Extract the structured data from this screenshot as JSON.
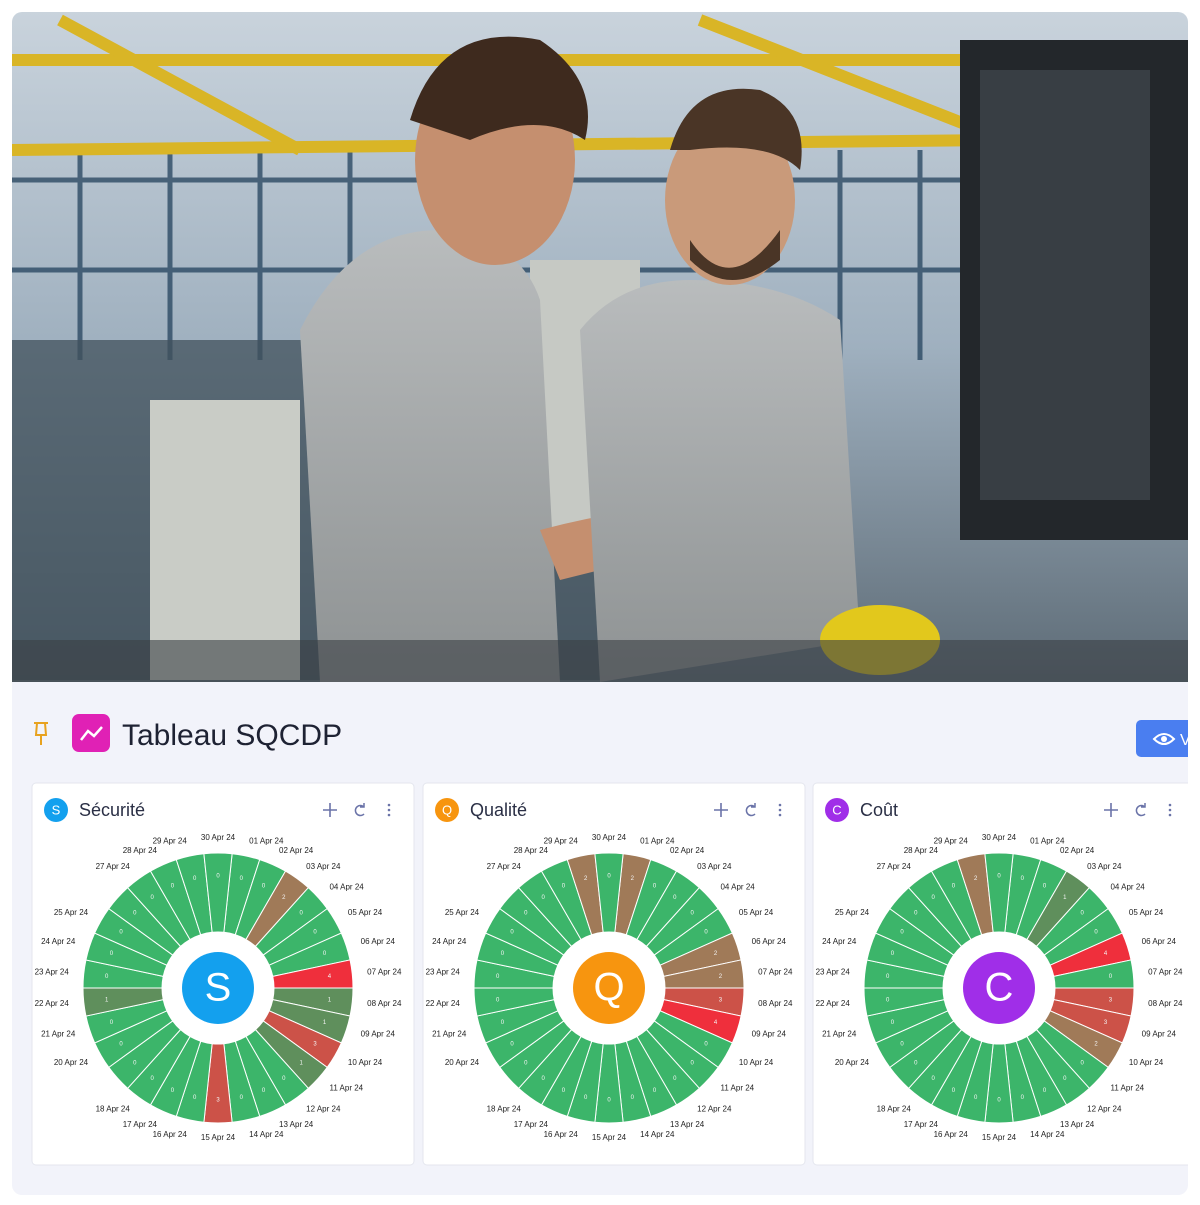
{
  "header": {
    "title": "Tableau SQCDP",
    "button": "V"
  },
  "chart_data": [
    {
      "type": "radial",
      "title": "Sécurité",
      "letter": "S",
      "color": "#13a0ee",
      "categories": [
        "01 Apr 24",
        "02 Apr 24",
        "03 Apr 24",
        "04 Apr 24",
        "05 Apr 24",
        "06 Apr 24",
        "07 Apr 24",
        "08 Apr 24",
        "09 Apr 24",
        "10 Apr 24",
        "11 Apr 24",
        "12 Apr 24",
        "13 Apr 24",
        "14 Apr 24",
        "15 Apr 24",
        "16 Apr 24",
        "17 Apr 24",
        "18 Apr 24",
        null,
        "20 Apr 24",
        "21 Apr 24",
        "22 Apr 24",
        "23 Apr 24",
        "24 Apr 24",
        "25 Apr 24",
        null,
        "27 Apr 24",
        "28 Apr 24",
        "29 Apr 24",
        "30 Apr 24"
      ],
      "values": [
        0,
        0,
        2,
        0,
        0,
        0,
        4,
        1,
        1,
        3,
        1,
        0,
        0,
        0,
        3,
        0,
        0,
        0,
        0,
        0,
        0,
        1,
        0,
        0,
        0,
        0,
        0,
        0,
        0,
        0
      ],
      "colors": [
        "#3cb56a",
        "#5f8f5c",
        "#a07a58",
        "#cc5248",
        "#ef2f3c"
      ]
    },
    {
      "type": "radial",
      "title": "Qualité",
      "letter": "Q",
      "color": "#f7950f",
      "categories": [
        "01 Apr 24",
        "02 Apr 24",
        "03 Apr 24",
        "04 Apr 24",
        "05 Apr 24",
        "06 Apr 24",
        "07 Apr 24",
        "08 Apr 24",
        "09 Apr 24",
        "10 Apr 24",
        "11 Apr 24",
        "12 Apr 24",
        "13 Apr 24",
        "14 Apr 24",
        "15 Apr 24",
        "16 Apr 24",
        "17 Apr 24",
        "18 Apr 24",
        null,
        "20 Apr 24",
        "21 Apr 24",
        "22 Apr 24",
        "23 Apr 24",
        "24 Apr 24",
        "25 Apr 24",
        null,
        "27 Apr 24",
        "28 Apr 24",
        "29 Apr 24",
        "30 Apr 24"
      ],
      "values": [
        2,
        0,
        0,
        0,
        0,
        2,
        2,
        3,
        4,
        0,
        0,
        0,
        0,
        0,
        0,
        0,
        0,
        0,
        0,
        0,
        0,
        0,
        0,
        0,
        0,
        0,
        0,
        0,
        2,
        0
      ],
      "colors": [
        "#3cb56a",
        "#5f8f5c",
        "#a07a58",
        "#cc5248",
        "#ef2f3c"
      ]
    },
    {
      "type": "radial",
      "title": "Coût",
      "letter": "C",
      "color": "#a02ee8",
      "categories": [
        "01 Apr 24",
        "02 Apr 24",
        "03 Apr 24",
        "04 Apr 24",
        "05 Apr 24",
        "06 Apr 24",
        "07 Apr 24",
        "08 Apr 24",
        "09 Apr 24",
        "10 Apr 24",
        "11 Apr 24",
        "12 Apr 24",
        "13 Apr 24",
        "14 Apr 24",
        "15 Apr 24",
        "16 Apr 24",
        "17 Apr 24",
        "18 Apr 24",
        null,
        "20 Apr 24",
        "21 Apr 24",
        "22 Apr 24",
        "23 Apr 24",
        "24 Apr 24",
        "25 Apr 24",
        null,
        "27 Apr 24",
        "28 Apr 24",
        "29 Apr 24",
        "30 Apr 24"
      ],
      "values": [
        0,
        0,
        1,
        0,
        0,
        4,
        0,
        3,
        3,
        2,
        0,
        0,
        0,
        0,
        0,
        0,
        0,
        0,
        0,
        0,
        0,
        0,
        0,
        0,
        0,
        0,
        0,
        0,
        2,
        0
      ],
      "colors": [
        "#3cb56a",
        "#5f8f5c",
        "#a07a58",
        "#cc5248",
        "#ef2f3c"
      ]
    }
  ]
}
